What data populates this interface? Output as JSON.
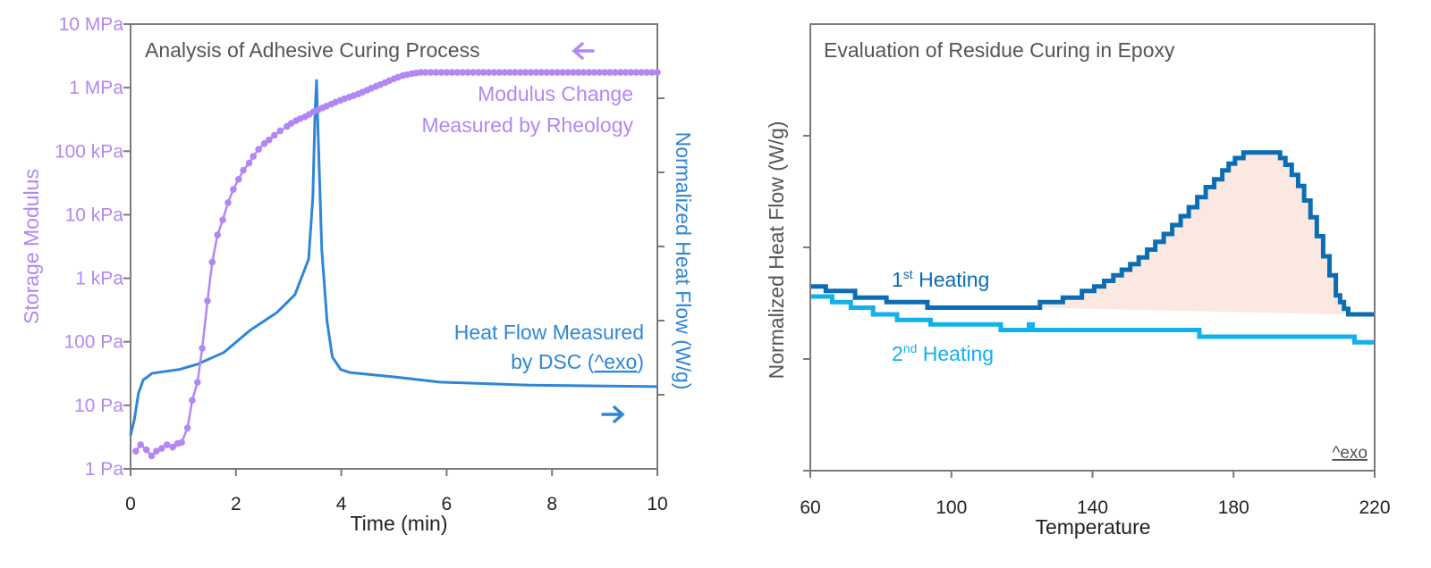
{
  "colors": {
    "modulus": "#b287f4",
    "dsc": "#2f86d6",
    "first": "#0b6db4",
    "second": "#12b0ec",
    "fill": "#fbe8e1",
    "axis": "#7a7a7a",
    "text": "#222222"
  },
  "chart_data": [
    {
      "type": "line",
      "title": "Analysis of Adhesive Curing Process",
      "xlabel": "Time (min)",
      "ylabel": "Storage Modulus",
      "y2label": "Normalized Heat Flow (W/g)",
      "xlim": [
        0,
        10
      ],
      "ylim": [
        1,
        10000000
      ],
      "yscale": "log",
      "xticks": [
        "0",
        "2",
        "4",
        "6",
        "8",
        "10"
      ],
      "yticks": [
        "1 Pa",
        "10 Pa",
        "100 Pa",
        "1 kPa",
        "10 kPa",
        "100 kPa",
        "1 MPa",
        "10 MPa"
      ],
      "y2lim": [
        0,
        6
      ],
      "grid": false,
      "annotations": {
        "modulus_line1": "Modulus Change",
        "modulus_line2": "Measured by Rheology",
        "dsc_line1": "Heat Flow Measured",
        "dsc_line2_prefix": "by DSC (",
        "dsc_exo": "^exo",
        "dsc_line2_suffix": ")",
        "modulus_arrow": "left-arrow",
        "dsc_arrow": "right-arrow"
      },
      "series": [
        {
          "axis": "left",
          "markers": true,
          "x": [
            0.1,
            0.19,
            0.3,
            0.4,
            0.49,
            0.59,
            0.69,
            0.8,
            0.89,
            0.97,
            1.08,
            1.17,
            1.27,
            1.36,
            1.46,
            1.55,
            1.65,
            1.75,
            1.85,
            1.95,
            2.05,
            2.14,
            2.25,
            2.33,
            2.43,
            2.54,
            2.63,
            2.73,
            2.84,
            2.97,
            3.05,
            3.14,
            3.22,
            3.31,
            3.39,
            3.47,
            3.56,
            3.64,
            3.72,
            3.81,
            3.89,
            3.98,
            4.06,
            4.15,
            4.23,
            4.32,
            4.4,
            4.49,
            4.57,
            4.66,
            4.74,
            4.83,
            4.91,
            5.0,
            5.08,
            5.17,
            5.25,
            5.34,
            5.42,
            5.51,
            5.6,
            5.7,
            5.8,
            5.9,
            6.0,
            6.1,
            6.2,
            6.3,
            6.4,
            6.5,
            6.6,
            6.7,
            6.8,
            6.9,
            7.0,
            7.1,
            7.2,
            7.3,
            7.4,
            7.5,
            7.6,
            7.7,
            7.8,
            7.9,
            8.0,
            8.1,
            8.2,
            8.3,
            8.4,
            8.5,
            8.6,
            8.7,
            8.8,
            8.9,
            9.0,
            9.1,
            9.2,
            9.3,
            9.4,
            9.5,
            9.6,
            9.7,
            9.8,
            9.9,
            10.0
          ],
          "y": [
            1.9,
            2.4,
            2.0,
            1.6,
            1.9,
            2.1,
            2.4,
            2.2,
            2.5,
            2.6,
            4.4,
            12,
            23,
            79,
            440,
            1800,
            4800,
            8300,
            15500,
            25000,
            36000,
            50000,
            65000,
            83000,
            107000,
            132000,
            151000,
            178000,
            209000,
            245000,
            275000,
            302000,
            325000,
            347000,
            380000,
            417000,
            447000,
            479000,
            513000,
            550000,
            590000,
            631000,
            668000,
            708000,
            750000,
            794000,
            851000,
            912000,
            977000,
            1050000,
            1120000,
            1200000,
            1290000,
            1380000,
            1460000,
            1550000,
            1600000,
            1660000,
            1700000,
            1740000,
            1740000,
            1740000,
            1740000,
            1740000,
            1740000,
            1740000,
            1740000,
            1740000,
            1740000,
            1740000,
            1740000,
            1740000,
            1740000,
            1740000,
            1740000,
            1740000,
            1740000,
            1740000,
            1740000,
            1740000,
            1740000,
            1740000,
            1740000,
            1740000,
            1740000,
            1740000,
            1740000,
            1740000,
            1740000,
            1740000,
            1740000,
            1740000,
            1740000,
            1740000,
            1740000,
            1740000,
            1740000,
            1740000,
            1740000,
            1740000,
            1740000,
            1740000,
            1740000,
            1740000,
            1740000
          ]
        },
        {
          "axis": "right",
          "markers": false,
          "x": [
            0,
            0.07,
            0.15,
            0.24,
            0.41,
            0.92,
            1.26,
            1.77,
            2.27,
            2.78,
            3.12,
            3.38,
            3.46,
            3.5,
            3.53,
            3.56,
            3.63,
            3.73,
            3.83,
            3.99,
            4.16,
            5.02,
            5.87,
            7.57,
            10.0
          ],
          "y": [
            0.45,
            0.66,
            1.02,
            1.2,
            1.29,
            1.34,
            1.41,
            1.57,
            1.87,
            2.11,
            2.35,
            2.83,
            3.67,
            4.76,
            5.24,
            4.52,
            2.95,
            1.99,
            1.51,
            1.34,
            1.3,
            1.24,
            1.17,
            1.13,
            1.11
          ]
        }
      ]
    },
    {
      "type": "line",
      "title": "Evaluation of Residue Curing in Epoxy",
      "xlabel": "Temperature",
      "ylabel": "Normalized Heat Flow (W/g)",
      "xlim": [
        60,
        220
      ],
      "ylim": [
        0,
        4
      ],
      "xticks": [
        "60",
        "100",
        "140",
        "180",
        "220"
      ],
      "grid": false,
      "exo_label": "^exo",
      "step": true,
      "series": [
        {
          "name": "1st Heating",
          "label_num": "1",
          "label_sup": "st",
          "label_rest": " Heating",
          "x": [
            60,
            64.4,
            72.7,
            81.6,
            93.2,
            125.1,
            131.6,
            137.0,
            140.5,
            143.3,
            145.9,
            148.3,
            150.7,
            153.1,
            155.5,
            157.8,
            160.2,
            162.6,
            165.0,
            167.3,
            169.7,
            172.1,
            174.5,
            176.8,
            178.6,
            180.4,
            182.8,
            191.7,
            193.2,
            194.7,
            196.5,
            198.3,
            200.0,
            201.8,
            203.6,
            205.4,
            207.2,
            209.0,
            210.2,
            211.3,
            212.5,
            220
          ],
          "y": [
            1.65,
            1.61,
            1.55,
            1.51,
            1.46,
            1.51,
            1.55,
            1.61,
            1.65,
            1.7,
            1.75,
            1.8,
            1.85,
            1.91,
            1.98,
            2.05,
            2.12,
            2.2,
            2.28,
            2.36,
            2.45,
            2.54,
            2.61,
            2.69,
            2.75,
            2.8,
            2.85,
            2.85,
            2.8,
            2.74,
            2.65,
            2.55,
            2.42,
            2.27,
            2.1,
            1.92,
            1.75,
            1.57,
            1.51,
            1.45,
            1.4,
            1.4
          ]
        },
        {
          "name": "2nd Heating",
          "label_num": "2",
          "label_sup": "nd",
          "label_rest": " Heating",
          "x": [
            60,
            66.2,
            71.5,
            77.8,
            84.6,
            94.1,
            114.0,
            122.0,
            123.0,
            170.3,
            214.3,
            220
          ],
          "y": [
            1.56,
            1.51,
            1.46,
            1.4,
            1.35,
            1.31,
            1.26,
            1.31,
            1.26,
            1.2,
            1.15,
            1.15
          ]
        }
      ],
      "shaded_region": {
        "from": 125.1,
        "to": 211.3,
        "baseline": [
          1.46,
          1.4
        ]
      }
    }
  ]
}
